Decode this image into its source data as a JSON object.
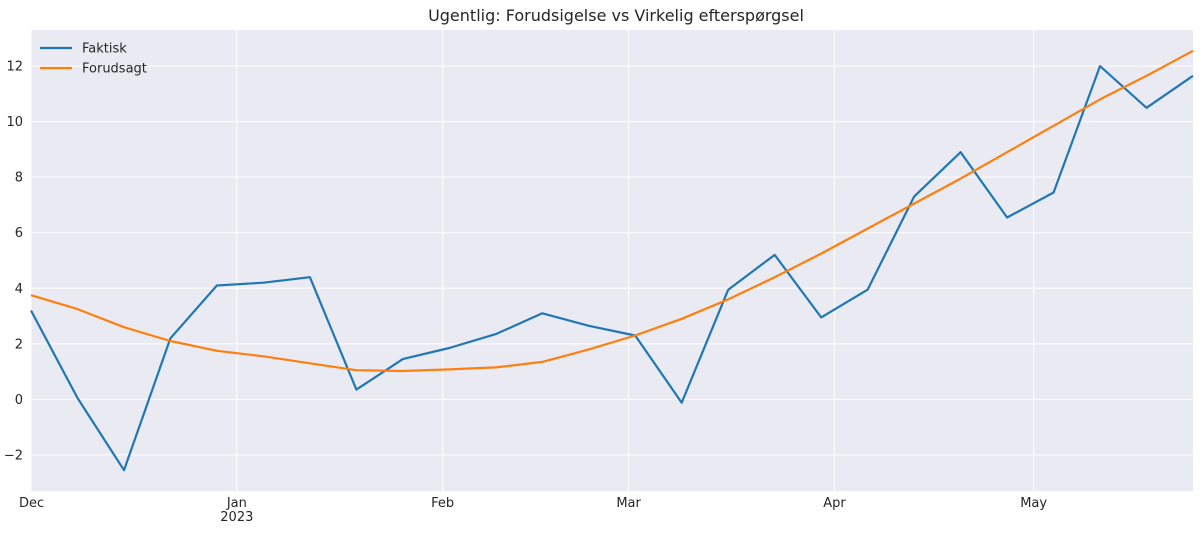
{
  "chart_data": {
    "type": "line",
    "title": "Ugentlig: Forudsigelse vs Virkelig efterspørgsel",
    "xlabel": "",
    "ylabel": "",
    "grid": true,
    "legend_position": "top-left",
    "background": "#eaeaf2",
    "x": [
      "2022-12-01",
      "2022-12-08",
      "2022-12-15",
      "2022-12-22",
      "2022-12-29",
      "2023-01-05",
      "2023-01-12",
      "2023-01-19",
      "2023-01-26",
      "2023-02-02",
      "2023-02-09",
      "2023-02-16",
      "2023-02-23",
      "2023-03-02",
      "2023-03-09",
      "2023-03-16",
      "2023-03-23",
      "2023-03-30",
      "2023-04-06",
      "2023-04-13",
      "2023-04-20",
      "2023-04-27",
      "2023-05-04",
      "2023-05-11",
      "2023-05-18",
      "2023-05-25"
    ],
    "xlim": [
      "2022-12-01",
      "2023-05-25"
    ],
    "ylim": [
      -3.3,
      13.3
    ],
    "x_ticks": [
      {
        "date": "2022-12-01",
        "label": "Dec",
        "sublabel": ""
      },
      {
        "date": "2023-01-01",
        "label": "Jan",
        "sublabel": "2023"
      },
      {
        "date": "2023-02-01",
        "label": "Feb",
        "sublabel": ""
      },
      {
        "date": "2023-03-01",
        "label": "Mar",
        "sublabel": ""
      },
      {
        "date": "2023-04-01",
        "label": "Apr",
        "sublabel": ""
      },
      {
        "date": "2023-05-01",
        "label": "May",
        "sublabel": ""
      }
    ],
    "y_ticks": [
      {
        "value": -2,
        "label": "−2"
      },
      {
        "value": 0,
        "label": "0"
      },
      {
        "value": 2,
        "label": "2"
      },
      {
        "value": 4,
        "label": "4"
      },
      {
        "value": 6,
        "label": "6"
      },
      {
        "value": 8,
        "label": "8"
      },
      {
        "value": 10,
        "label": "10"
      },
      {
        "value": 12,
        "label": "12"
      }
    ],
    "series": [
      {
        "name": "Faktisk",
        "color": "#1f77b4",
        "values": [
          3.2,
          0.05,
          -2.55,
          2.2,
          4.1,
          4.2,
          4.4,
          0.35,
          1.45,
          1.85,
          2.35,
          3.1,
          2.65,
          2.3,
          -0.12,
          3.95,
          5.2,
          2.95,
          3.95,
          7.3,
          8.9,
          6.55,
          7.45,
          12.0,
          10.5,
          11.65
        ]
      },
      {
        "name": "Forudsagt",
        "color": "#ff7f0e",
        "values": [
          3.75,
          3.25,
          2.6,
          2.1,
          1.75,
          1.55,
          1.3,
          1.05,
          1.02,
          1.08,
          1.15,
          1.35,
          1.8,
          2.3,
          2.9,
          3.6,
          4.4,
          5.25,
          6.15,
          7.05,
          7.95,
          8.9,
          9.85,
          10.8,
          11.65,
          12.55
        ]
      }
    ]
  }
}
